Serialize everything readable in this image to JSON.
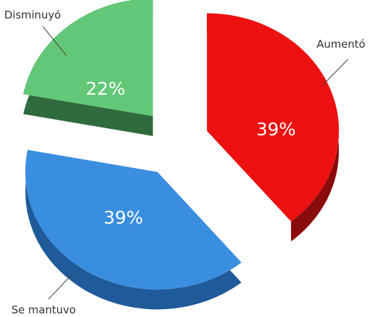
{
  "chart_data": {
    "type": "pie",
    "style": "exploded-3d",
    "slices": [
      {
        "label": "Aumentó",
        "value": 39,
        "value_label": "39%",
        "color": "#ee1111",
        "side_color": "#8a0b0b"
      },
      {
        "label": "Se mantuvo",
        "value": 39,
        "value_label": "39%",
        "color": "#3a8ee0",
        "side_color": "#1f5a9a"
      },
      {
        "label": "Disminuyó",
        "value": 22,
        "value_label": "22%",
        "color": "#62c878",
        "side_color": "#2f6b3c"
      }
    ]
  }
}
